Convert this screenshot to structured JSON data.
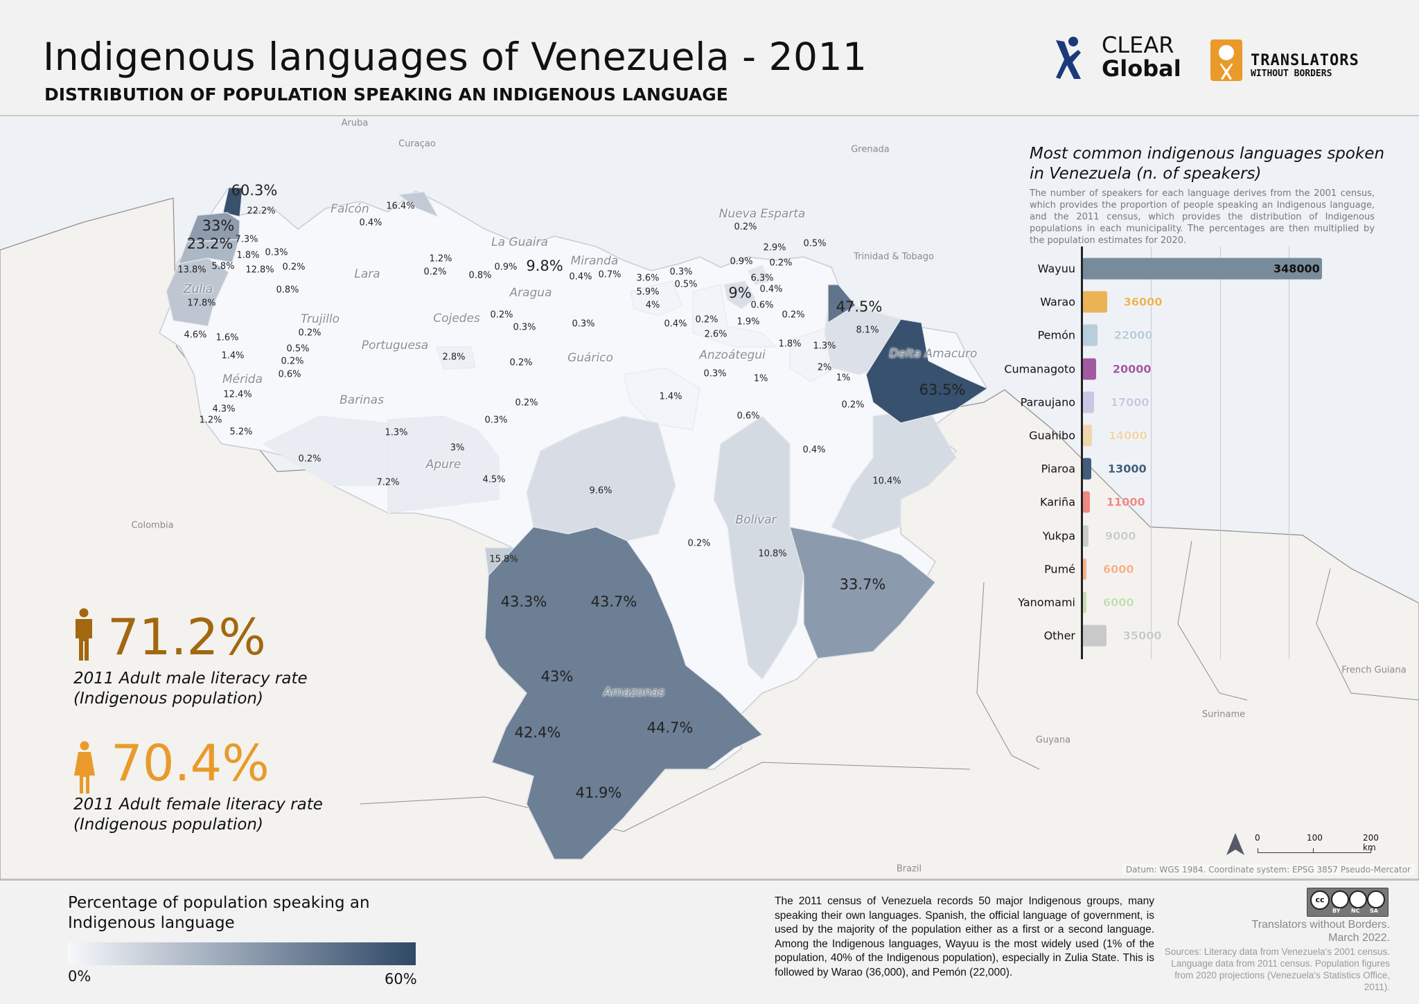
{
  "header": {
    "title": "Indigenous languages of Venezuela - 2011",
    "subtitle": "DISTRIBUTION OF POPULATION SPEAKING AN INDIGENOUS LANGUAGE",
    "logo_clear_global": [
      "CLEAR",
      "Global"
    ],
    "logo_twb": [
      "TRANSLATORS",
      "WITHOUT BORDERS"
    ],
    "colors": {
      "clear_global": "#1a3a7a",
      "twb": "#e99a2a"
    }
  },
  "map": {
    "color_scale": {
      "min": 0,
      "max": 60,
      "low": "#f6f8fc",
      "high": "#2e4866"
    },
    "country_labels": [
      "Aruba",
      "Curaçao",
      "Grenada",
      "Trinidad & Tobago",
      "Colombia",
      "Guyana",
      "Suriname",
      "French Guiana",
      "Brazil"
    ],
    "state_labels": [
      "Falcón",
      "Lara",
      "Zulia",
      "Trujillo",
      "Portuguesa",
      "Mérida",
      "Barinas",
      "Cojedes",
      "Aragua",
      "La Guaira",
      "Miranda",
      "Guárico",
      "Anzoátegui",
      "Nueva Esparta",
      "Delta Amacuro",
      "Apure",
      "Bolívar",
      "Amazonas"
    ],
    "value_labels": [
      "60.3%",
      "22.2%",
      "33%",
      "23.2%",
      "7.3%",
      "1.8%",
      "13.8%",
      "5.8%",
      "12.8%",
      "0.3%",
      "0.2%",
      "17.8%",
      "0.8%",
      "16.4%",
      "0.4%",
      "1.2%",
      "0.2%",
      "0.8%",
      "0.9%",
      "9.8%",
      "0.4%",
      "0.7%",
      "3.6%",
      "5.9%",
      "4%",
      "0.3%",
      "0.5%",
      "0.2%",
      "2.9%",
      "0.5%",
      "0.9%",
      "0.2%",
      "6.3%",
      "0.4%",
      "9%",
      "0.6%",
      "0.2%",
      "47.5%",
      "8.1%",
      "0.2%",
      "0.3%",
      "0.3%",
      "2.6%",
      "0.2%",
      "1.9%",
      "0.4%",
      "1.8%",
      "1.3%",
      "2%",
      "1%",
      "1%",
      "0.3%",
      "63.5%",
      "0.2%",
      "1.4%",
      "0.6%",
      "0.4%",
      "10.4%",
      "4.6%",
      "1.6%",
      "1.4%",
      "0.5%",
      "0.2%",
      "0.6%",
      "0.2%",
      "2.8%",
      "0.2%",
      "0.2%",
      "0.3%",
      "12.4%",
      "4.3%",
      "1.2%",
      "5.2%",
      "1.3%",
      "3%",
      "4.5%",
      "7.2%",
      "0.2%",
      "9.6%",
      "15.8%",
      "0.2%",
      "10.8%",
      "33.7%",
      "43.3%",
      "43.7%",
      "43%",
      "44.7%",
      "42.4%",
      "41.9%"
    ],
    "scale_bar": {
      "ticks": [
        "0",
        "100",
        "200 km"
      ]
    },
    "north_arrow_icon": "north-arrow-icon",
    "datum": "Datum: WGS 1984. Coordinate system: EPSG 3857 Pseudo-Mercator"
  },
  "chart_data": {
    "type": "bar",
    "orientation": "horizontal",
    "title": "Most common indigenous languages spoken in Venezuela (n. of speakers)",
    "description": "The number of speakers for each language derives from the 2001 census, which provides the proportion of people speaking an Indigenous language, and the 2011 census, which provides the distribution of Indigenous populations in each municipality.  The percentages are then multiplied by the population estimates for 2020.",
    "categories": [
      "Wayuu",
      "Warao",
      "Pemón",
      "Cumanagoto",
      "Paraujano",
      "Guahibo",
      "Piaroa",
      "Kariña",
      "Yukpa",
      "Pumé",
      "Yanomami",
      "Other"
    ],
    "values": [
      348000,
      36000,
      22000,
      20000,
      17000,
      14000,
      13000,
      11000,
      9000,
      6000,
      6000,
      35000
    ],
    "value_labels": [
      "348000",
      "36000",
      "22000",
      "20000",
      "17000",
      "14000",
      "13000",
      "11000",
      "9000",
      "6000",
      "6000",
      "35000"
    ],
    "colors": [
      "#788b9b",
      "#ebb354",
      "#b8cedb",
      "#a25aa0",
      "#c8c8e6",
      "#efd6ac",
      "#415c7c",
      "#ee8882",
      "#cccccc",
      "#f8b08c",
      "#c7dcb2",
      "#c9c9c9"
    ],
    "xlim": [
      0,
      350000
    ],
    "gridlines": [
      100000,
      200000,
      300000
    ],
    "grid": true
  },
  "literacy": {
    "male": {
      "value": "71.2%",
      "label": [
        "2011 Adult male literacy rate",
        "(Indigenous population)"
      ],
      "color": "#a2670f"
    },
    "female": {
      "value": "70.4%",
      "label": [
        "2011 Adult female literacy rate",
        "(Indigenous population)"
      ],
      "color": "#e99a2a"
    }
  },
  "legend": {
    "title": [
      "Percentage of population speaking an",
      "Indigenous language"
    ],
    "min_label": "0%",
    "max_label": "60%"
  },
  "footer": {
    "about": "The 2011 census of Venezuela records 50 major Indigenous groups, many speaking their own languages. Spanish, the official language of government, is used by the majority of the population either as a first or a second language.  Among the Indigenous languages, Wayuu is the most widely used (1% of the population, 40% of the Indigenous population), especially in Zulia State. This is followed by Warao (36,000), and Pemón (22,000).",
    "license": [
      "cc",
      "BY",
      "NC",
      "SA"
    ],
    "credit": [
      "Translators without Borders.",
      "March 2022."
    ],
    "sources": "Sources: Literacy data from Venezuela's 2001 census.  Language data from 2011 census. Population figures from 2020 projections (Venezuela's Statistics Office, 2011)."
  }
}
